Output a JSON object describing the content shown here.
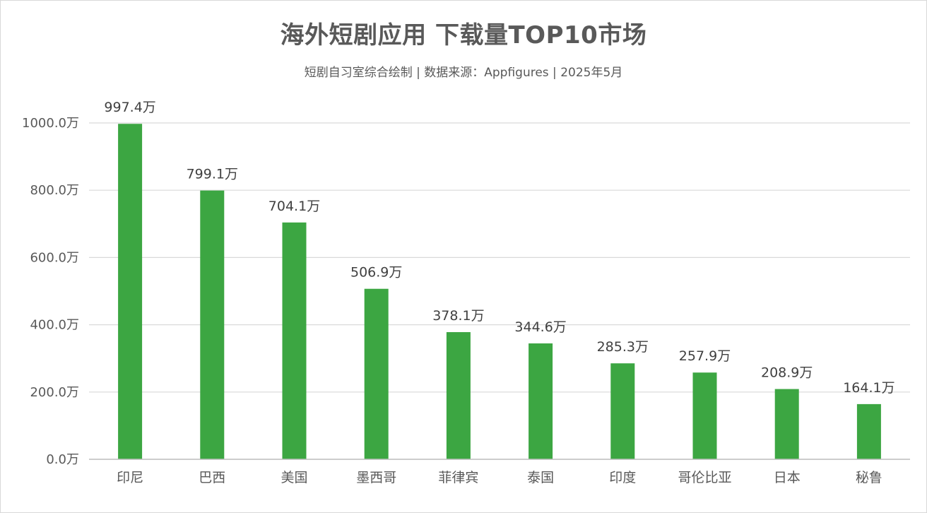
{
  "chart_data": {
    "type": "bar",
    "title": "海外短剧应用 下载量TOP10市场",
    "subtitle": "短剧自习室综合绘制 | 数据来源：Appfigures | 2025年5月",
    "categories": [
      "印尼",
      "巴西",
      "美国",
      "墨西哥",
      "菲律宾",
      "泰国",
      "印度",
      "哥伦比亚",
      "日本",
      "秘鲁"
    ],
    "values": [
      997.4,
      799.1,
      704.1,
      506.9,
      378.1,
      344.6,
      285.3,
      257.9,
      208.9,
      164.1
    ],
    "value_labels": [
      "997.4万",
      "799.1万",
      "704.1万",
      "506.9万",
      "378.1万",
      "344.6万",
      "285.3万",
      "257.9万",
      "208.9万",
      "164.1万"
    ],
    "y_ticks": [
      0,
      200,
      400,
      600,
      800,
      1000
    ],
    "y_tick_labels": [
      "0.0万",
      "200.0万",
      "400.0万",
      "600.0万",
      "800.0万",
      "1000.0万"
    ],
    "ylim": [
      0,
      1000
    ],
    "xlabel": "",
    "ylabel": "",
    "grid": true,
    "bar_color": "#3ca642",
    "grid_color": "#d9d9d9"
  }
}
